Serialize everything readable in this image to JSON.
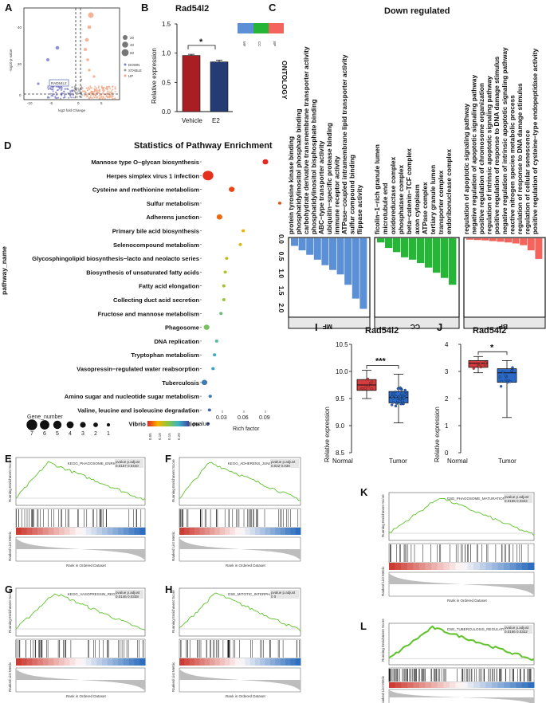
{
  "panel_labels": {
    "A": "A",
    "B": "B",
    "C": "C",
    "D": "D",
    "E": "E",
    "F": "F",
    "G": "G",
    "H": "H",
    "I": "I",
    "J": "J",
    "K": "K",
    "L": "L"
  },
  "panel_a": {
    "ylabel": "-log10 p-value",
    "xlabel": "log2 fold Change",
    "xticks": [
      "-10",
      "-5",
      "0",
      "5"
    ],
    "yticks": [
      "0",
      "20",
      "40"
    ],
    "highlight": "RAD54L2",
    "size_legend": [
      "20",
      "40",
      "60"
    ],
    "status_legend": [
      "DOWN",
      "STABLE",
      "UP"
    ],
    "colors": {
      "down": "#7d7fc9",
      "stable": "#9b9b9b",
      "up": "#f4a582"
    }
  },
  "panel_b": {
    "title": "Rad54l2",
    "ylabel": "Relative expression",
    "sig": "*",
    "chart_data": {
      "type": "bar",
      "categories": [
        "Vehicle",
        "E2"
      ],
      "values": [
        0.96,
        0.85
      ],
      "errors": [
        0.02,
        0.03
      ],
      "colors": [
        "#a81e22",
        "#243b73"
      ],
      "yticks": [
        "0.0",
        "0.5",
        "1.0",
        "1.5"
      ],
      "ylim": [
        0,
        1.5
      ]
    }
  },
  "panel_c": {
    "title": "Down regulated",
    "legend_title": "ONTOLOGY",
    "legend": [
      {
        "name": "MF",
        "color": "#5b8fd6"
      },
      {
        "name": "CC",
        "color": "#27b538"
      },
      {
        "name": "BP",
        "color": "#f2645c"
      }
    ],
    "yticks": [
      "0.0",
      "0.5",
      "1.0",
      "1.5",
      "2.0"
    ],
    "facets": [
      "MF",
      "CC",
      "BP"
    ],
    "chart_data": {
      "type": "bar",
      "orientation": "downward",
      "ylim": [
        0,
        2.2
      ],
      "MF": {
        "terms": [
          "protein tyrosine kinase binding",
          "phosphatidylinositol phosphate binding",
          "carbohydrate derivative transmembrane transporter activity",
          "phosphatidylinositol bisphosphate binding",
          "ABC−type transporter activity",
          "ubiquitin−specific protease binding",
          "immune receptor activity",
          "ATPase−coupled intramembrane lipid transporter activity",
          "sulfur compound binding",
          "flippase activity"
        ],
        "values": [
          0.22,
          0.35,
          0.48,
          0.62,
          0.78,
          0.92,
          1.05,
          1.35,
          1.75,
          2.05
        ]
      },
      "CC": {
        "terms": [
          "ficolin−1−rich granule lumen",
          "microtubule end",
          "oxidoreductase complex",
          "phosphatase complex",
          "beta−catenin−TCF complex",
          "axon cytoplasm",
          "ATPase complex",
          "tertiary granule lumen",
          "transporter complex",
          "endoribonuclease complex"
        ],
        "values": [
          0.12,
          0.28,
          0.4,
          0.55,
          0.62,
          0.72,
          0.85,
          1.0,
          1.15,
          1.35
        ]
      },
      "BP": {
        "terms": [
          "regulation of apoptotic signaling pathway",
          "negative regulation of apoptotic signaling pathway",
          "positive regulation of chromosome organization",
          "regulation of intrinsic apoptotic signaling pathway",
          "positive regulation of response to DNA damage stimulus",
          "negative regulation of intrinsic apoptotic signaling pathway",
          "reactive nitrogen species metabolic process",
          "regulation of response to DNA damage stimulus",
          "regulation of cellular senescence",
          "positive regulation of cysteine−type endopeptidase activity"
        ],
        "values": [
          0.04,
          0.05,
          0.06,
          0.08,
          0.1,
          0.12,
          0.15,
          0.2,
          0.35,
          0.6
        ]
      }
    }
  },
  "panel_d": {
    "title": "Statistics of Pathway Enrichment",
    "ylabel": "pathway_name",
    "xlabel": "Rich factor",
    "xticks": [
      "0.03",
      "0.06",
      "0.09"
    ],
    "size_legend_title": "Gene_number",
    "size_legend": [
      "7",
      "6",
      "5",
      "4",
      "3",
      "2",
      "1"
    ],
    "color_legend_title": "pvalue",
    "color_ticks": [
      "0.05",
      "0.10",
      "0.15",
      "0.20"
    ],
    "chart_data": {
      "type": "scatter",
      "xlim": [
        0,
        0.11
      ],
      "pathways": [
        "Mannose type O−glycan biosynthesis",
        "Herpes simplex virus 1 infection",
        "Cysteine and methionine metabolism",
        "Sulfur metabolism",
        "Adherens junction",
        "Primary bile acid biosynthesis",
        "Selenocompound metabolism",
        "Glycosphingolipid biosynthesis−lacto and neolacto series",
        "Biosynthesis of unsaturated fatty acids",
        "Fatty acid elongation",
        "Collecting duct acid secretion",
        "Fructose and mannose metabolism",
        "Phagosome",
        "DNA replication",
        "Tryptophan metabolism",
        "Vasopressin−regulated water reabsorption",
        "Tuberculosis",
        "Amino sugar and nucleotide sugar metabolism",
        "Valine, leucine and isoleucine degradation",
        "Vibrio cholerae infection"
      ],
      "rich_factor": [
        0.09,
        0.01,
        0.043,
        0.11,
        0.026,
        0.059,
        0.055,
        0.036,
        0.034,
        0.032,
        0.032,
        0.028,
        0.008,
        0.022,
        0.019,
        0.017,
        0.005,
        0.013,
        0.012,
        0.01
      ],
      "gene_number": [
        3,
        7,
        3,
        1,
        3,
        1,
        1,
        1,
        1,
        1,
        1,
        1,
        3,
        1,
        1,
        1,
        3,
        1,
        1,
        1
      ],
      "pvalue": [
        0.012,
        0.015,
        0.025,
        0.03,
        0.04,
        0.07,
        0.09,
        0.1,
        0.11,
        0.12,
        0.13,
        0.16,
        0.15,
        0.18,
        0.2,
        0.21,
        0.23,
        0.23,
        0.24,
        0.25
      ]
    }
  },
  "gsea": {
    "E": {
      "term": "KEGG_PHAGOSOME_ENRICHMENT",
      "stats": [
        "pvalue  p.adjust",
        "0.0157  0.0440"
      ]
    },
    "F": {
      "term": "KEGG_ADHERENS_JUNCTION",
      "stats": [
        "pvalue  p.adjust",
        "0.022  0.039"
      ]
    },
    "G": {
      "term": "KEGG_VASOPRESSIN_REGULATED",
      "stats": [
        "pvalue  p.adjust",
        "0.0146  0.0338"
      ]
    },
    "H": {
      "term": "GSE_MITOTIC_INTERPHASE",
      "stats": [
        "pvalue  p.adjust",
        "0  0"
      ]
    },
    "K": {
      "term": "GSE_PHAGOSOME_MATURATION",
      "stats": [
        "pvalue  p.adjust",
        "0.0166  0.0322"
      ]
    },
    "L": {
      "term": "GSE_TUBERCULOSIS_REGULATION",
      "stats": [
        "pvalue  p.adjust",
        "0.0166  0.0322"
      ]
    },
    "ylabel": "Running Enrichment Score",
    "ylabel2": "Ranked List Metric",
    "xlabel": "Rank in Ordered Dataset"
  },
  "panel_i": {
    "title": "Rad54l2",
    "ylabel": "Relative expression",
    "sig": "***",
    "chart_data": {
      "type": "boxplot",
      "categories": [
        "Normal",
        "Tumor"
      ],
      "colors": [
        "#d43d3d",
        "#2a69c8"
      ],
      "ylim": [
        8.5,
        10.5
      ],
      "yticks": [
        "8.5",
        "9.0",
        "9.5",
        "10.0",
        "10.5"
      ],
      "Normal": {
        "min": 9.5,
        "q1": 9.65,
        "median": 9.75,
        "q3": 9.85,
        "max": 10.02
      },
      "Tumor": {
        "min": 9.05,
        "q1": 9.42,
        "median": 9.52,
        "q3": 9.63,
        "max": 9.95
      }
    }
  },
  "panel_j": {
    "title": "Rad54l2",
    "ylabel": "Relative expression",
    "sig": "*",
    "chart_data": {
      "type": "boxplot",
      "categories": [
        "Normal",
        "Tumor"
      ],
      "colors": [
        "#d43d3d",
        "#2a69c8"
      ],
      "ylim": [
        0,
        4
      ],
      "yticks": [
        "0",
        "1",
        "2",
        "3",
        "4"
      ],
      "Normal": {
        "min": 2.95,
        "q1": 3.15,
        "median": 3.3,
        "q3": 3.4,
        "max": 3.55
      },
      "Tumor": {
        "min": 1.3,
        "q1": 2.6,
        "median": 2.95,
        "q3": 3.1,
        "max": 3.4
      }
    }
  }
}
